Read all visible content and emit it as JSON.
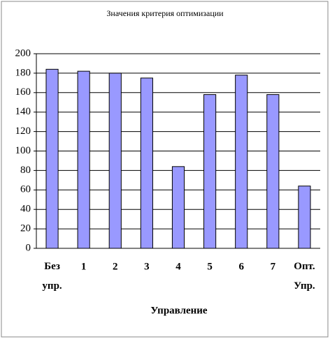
{
  "chart_data": {
    "type": "bar",
    "title": "Значения критерия оптимизации",
    "x_label": "Управление",
    "categories": [
      "Без упр.",
      "1",
      "2",
      "3",
      "4",
      "5",
      "6",
      "7",
      "Опт. Упр."
    ],
    "values": [
      184,
      182,
      180,
      175,
      84,
      158,
      178,
      158,
      64
    ],
    "color": "#9999ff",
    "ylim": [
      0,
      200
    ],
    "yticks": [
      0,
      20,
      40,
      60,
      80,
      100,
      120,
      140,
      160,
      180,
      200
    ],
    "grid": true
  }
}
